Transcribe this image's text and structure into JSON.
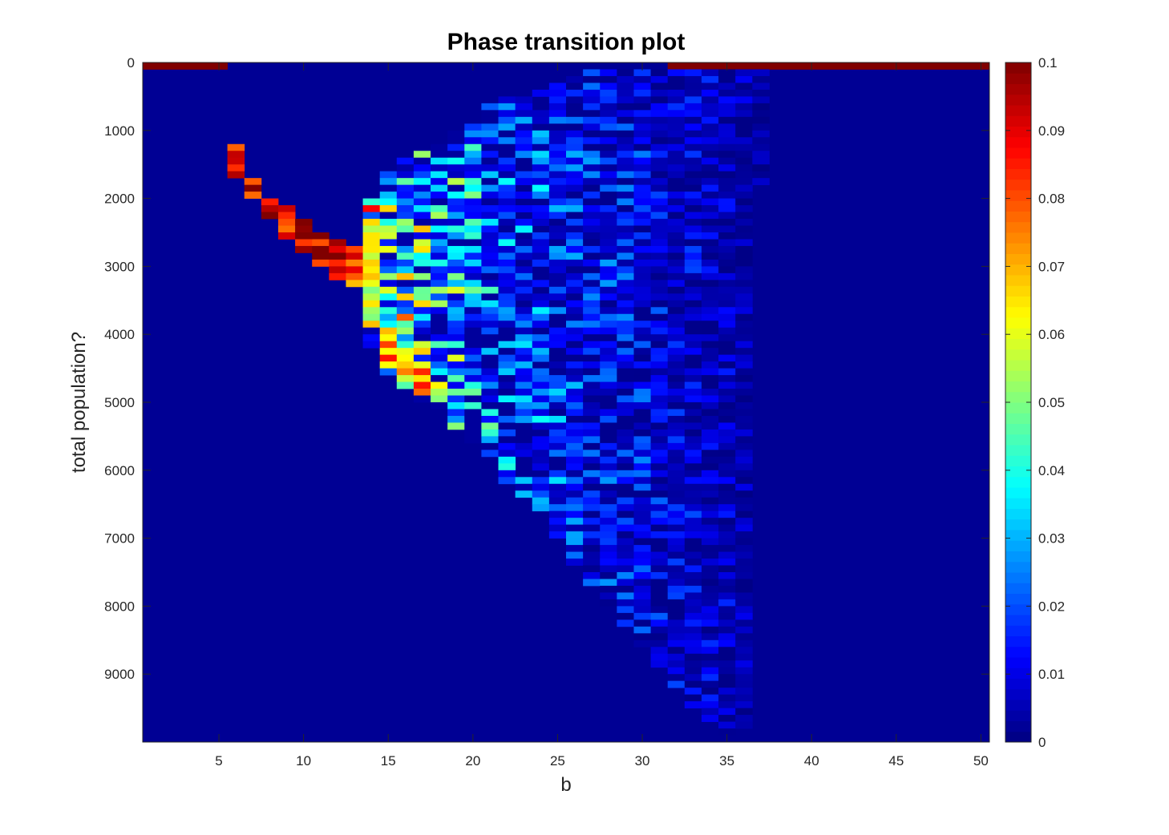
{
  "chart_data": {
    "type": "heatmap",
    "title": "Phase transition plot",
    "xlabel": "b",
    "ylabel": "total population?",
    "x_range": [
      0.5,
      50.5
    ],
    "y_range": [
      0,
      10000
    ],
    "y_reversed": true,
    "x_ticks": [
      5,
      10,
      15,
      20,
      25,
      30,
      35,
      40,
      45,
      50
    ],
    "y_ticks": [
      0,
      1000,
      2000,
      3000,
      4000,
      5000,
      6000,
      7000,
      8000,
      9000
    ],
    "colormap": "jet",
    "clim": [
      0,
      0.1
    ],
    "colorbar_ticks": [
      "0",
      "0.01",
      "0.02",
      "0.03",
      "0.04",
      "0.05",
      "0.06",
      "0.07",
      "0.08",
      "0.09",
      "0.1"
    ],
    "colorbar_tick_values": [
      0,
      0.01,
      0.02,
      0.03,
      0.04,
      0.05,
      0.06,
      0.07,
      0.08,
      0.09,
      0.1
    ],
    "grid": false,
    "bin_height": 100,
    "saturated_regions": [
      {
        "x": [
          1,
          5
        ],
        "y": [
          0,
          100
        ],
        "value": 0.1
      },
      {
        "x": [
          32,
          50
        ],
        "y": [
          0,
          100
        ],
        "value": 0.1
      }
    ],
    "high_ridge": [
      {
        "x": 6,
        "y_min": 1200,
        "y_max": 1700,
        "value": 0.1
      },
      {
        "x": 7,
        "y_min": 1700,
        "y_max": 2000,
        "value": 0.1
      },
      {
        "x": 8,
        "y_min": 2000,
        "y_max": 2300,
        "value": 0.1
      },
      {
        "x": 9,
        "y_min": 2100,
        "y_max": 2600,
        "value": 0.1
      },
      {
        "x": 10,
        "y_min": 2300,
        "y_max": 2800,
        "value": 0.1
      },
      {
        "x": 11,
        "y_min": 2500,
        "y_max": 3000,
        "value": 0.1
      },
      {
        "x": 12,
        "y_min": 2600,
        "y_max": 3200,
        "value": 0.095
      },
      {
        "x": 13,
        "y_min": 2700,
        "y_max": 3300,
        "value": 0.09
      },
      {
        "x": 14,
        "y_min": 2500,
        "y_max": 3900,
        "value": 0.065
      },
      {
        "x": 15,
        "y_min": 3900,
        "y_max": 4500,
        "value": 0.08
      },
      {
        "x": 16,
        "y_min": 4200,
        "y_max": 4700,
        "value": 0.07
      },
      {
        "x": 17,
        "y_min": 4400,
        "y_max": 4900,
        "value": 0.08
      },
      {
        "x": 18,
        "y_min": 4700,
        "y_max": 5000,
        "value": 0.06
      }
    ],
    "scatter_region": [
      {
        "x": 14,
        "y_min": 2000,
        "y_max": 4200,
        "mean": 0.045
      },
      {
        "x": 15,
        "y_min": 1600,
        "y_max": 4600,
        "mean": 0.04
      },
      {
        "x": 16,
        "y_min": 1400,
        "y_max": 4800,
        "mean": 0.04
      },
      {
        "x": 17,
        "y_min": 1300,
        "y_max": 5000,
        "mean": 0.035
      },
      {
        "x": 18,
        "y_min": 1200,
        "y_max": 5100,
        "mean": 0.03
      },
      {
        "x": 19,
        "y_min": 1000,
        "y_max": 5400,
        "mean": 0.03
      },
      {
        "x": 20,
        "y_min": 900,
        "y_max": 5600,
        "mean": 0.028
      },
      {
        "x": 21,
        "y_min": 600,
        "y_max": 5800,
        "mean": 0.025
      },
      {
        "x": 22,
        "y_min": 500,
        "y_max": 6200,
        "mean": 0.022
      },
      {
        "x": 23,
        "y_min": 400,
        "y_max": 6400,
        "mean": 0.02
      },
      {
        "x": 24,
        "y_min": 400,
        "y_max": 6600,
        "mean": 0.02
      },
      {
        "x": 25,
        "y_min": 300,
        "y_max": 7000,
        "mean": 0.018
      },
      {
        "x": 26,
        "y_min": 200,
        "y_max": 7400,
        "mean": 0.017
      },
      {
        "x": 27,
        "y_min": 100,
        "y_max": 7700,
        "mean": 0.016
      },
      {
        "x": 28,
        "y_min": 100,
        "y_max": 8000,
        "mean": 0.015
      },
      {
        "x": 29,
        "y_min": 100,
        "y_max": 8300,
        "mean": 0.014
      },
      {
        "x": 30,
        "y_min": 100,
        "y_max": 8600,
        "mean": 0.013
      },
      {
        "x": 31,
        "y_min": 100,
        "y_max": 8900,
        "mean": 0.012
      },
      {
        "x": 32,
        "y_min": 100,
        "y_max": 9200,
        "mean": 0.011
      },
      {
        "x": 33,
        "y_min": 100,
        "y_max": 9500,
        "mean": 0.01
      },
      {
        "x": 34,
        "y_min": 100,
        "y_max": 9700,
        "mean": 0.009
      },
      {
        "x": 35,
        "y_min": 100,
        "y_max": 9900,
        "mean": 0.008
      },
      {
        "x": 36,
        "y_min": 100,
        "y_max": 9800,
        "mean": 0.006
      },
      {
        "x": 37,
        "y_min": 100,
        "y_max": 1800,
        "mean": 0.004
      }
    ],
    "background_value": 0.002
  }
}
